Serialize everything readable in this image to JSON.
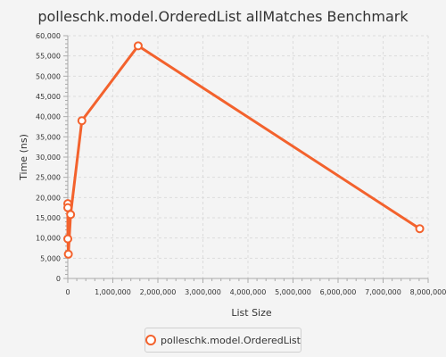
{
  "chart_data": {
    "type": "line",
    "title": "polleschk.model.OrderedList allMatches Benchmark",
    "xlabel": "List Size",
    "ylabel": "Time (ns)",
    "xlim": [
      0,
      8000000
    ],
    "ylim": [
      0,
      60000
    ],
    "x_ticks": [
      0,
      1000000,
      2000000,
      3000000,
      4000000,
      5000000,
      6000000,
      7000000,
      8000000
    ],
    "x_tick_labels": [
      "0",
      "1,000,000",
      "2,000,000",
      "3,000,000",
      "4,000,000",
      "5,000,000",
      "6,000,000",
      "7,000,000",
      "8,000,000"
    ],
    "y_ticks": [
      0,
      5000,
      10000,
      15000,
      20000,
      25000,
      30000,
      35000,
      40000,
      45000,
      50000,
      55000,
      60000
    ],
    "y_tick_labels": [
      "0",
      "5,000",
      "10,000",
      "15,000",
      "20,000",
      "25,000",
      "30,000",
      "35,000",
      "40,000",
      "45,000",
      "50,000",
      "55,000",
      "60,000"
    ],
    "grid": true,
    "legend_position": "bottom",
    "series": [
      {
        "name": "polleschk.model.OrderedList",
        "color": "#f3622d",
        "points": [
          {
            "x": 10,
            "y": 18500
          },
          {
            "x": 100,
            "y": 17500
          },
          {
            "x": 1000,
            "y": 9800
          },
          {
            "x": 12500,
            "y": 6000
          },
          {
            "x": 62500,
            "y": 15800
          },
          {
            "x": 312500,
            "y": 39000
          },
          {
            "x": 1562500,
            "y": 57500
          },
          {
            "x": 7812500,
            "y": 12300
          }
        ]
      }
    ]
  }
}
